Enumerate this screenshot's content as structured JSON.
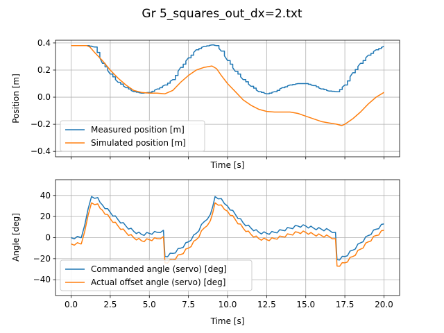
{
  "figure": {
    "title": "Gr 5_squares_out_dx=2.txt"
  },
  "chart_data": [
    {
      "type": "line",
      "title": "",
      "xlabel": "Time [s]",
      "ylabel": "Position [m]",
      "xlim": [
        -1.0,
        21.0
      ],
      "ylim": [
        -0.44,
        0.42
      ],
      "xticks": [
        0.0,
        2.5,
        5.0,
        7.5,
        10.0,
        12.5,
        15.0,
        17.5,
        20.0
      ],
      "show_xticklabels": false,
      "yticks": [
        -0.4,
        -0.2,
        0.0,
        0.2,
        0.4
      ],
      "yticklabels": [
        "−0.4",
        "−0.2",
        "0.0",
        "0.2",
        "0.4"
      ],
      "grid": true,
      "legend_position": "lower-left",
      "series": [
        {
          "name": "Measured position [m]",
          "color": "#1f77b4",
          "staircase": true,
          "x": [
            0,
            0.5,
            1.0,
            1.5,
            2.0,
            2.5,
            3.0,
            3.5,
            4.0,
            4.5,
            5.0,
            5.5,
            6.0,
            6.5,
            7.0,
            7.5,
            8.0,
            8.5,
            9.0,
            9.3,
            9.6,
            10.0,
            10.5,
            11.0,
            11.5,
            12.0,
            12.5,
            13.0,
            13.5,
            14.0,
            14.5,
            15.0,
            15.5,
            16.0,
            16.5,
            17.0,
            17.5,
            18.0,
            18.5,
            19.0,
            19.5,
            20.0
          ],
          "y": [
            0.38,
            0.38,
            0.38,
            0.37,
            0.25,
            0.17,
            0.11,
            0.07,
            0.04,
            0.03,
            0.035,
            0.06,
            0.09,
            0.13,
            0.22,
            0.29,
            0.35,
            0.375,
            0.385,
            0.38,
            0.34,
            0.27,
            0.19,
            0.13,
            0.08,
            0.04,
            0.025,
            0.04,
            0.07,
            0.09,
            0.1,
            0.1,
            0.085,
            0.06,
            0.045,
            0.04,
            0.09,
            0.18,
            0.25,
            0.31,
            0.35,
            0.375
          ]
        },
        {
          "name": "Simulated position [m]",
          "color": "#ff7f0e",
          "staircase": false,
          "x": [
            0,
            0.5,
            1.0,
            1.2,
            1.5,
            2.0,
            2.5,
            3.0,
            3.5,
            4.0,
            4.5,
            5.0,
            5.5,
            6.0,
            6.5,
            7.0,
            7.5,
            8.0,
            8.5,
            9.0,
            9.3,
            9.6,
            10.0,
            10.5,
            11.0,
            11.5,
            12.0,
            12.5,
            13.0,
            13.5,
            14.0,
            14.5,
            15.0,
            15.5,
            16.0,
            16.5,
            17.0,
            17.3,
            17.5,
            18.0,
            18.5,
            19.0,
            19.5,
            20.0
          ],
          "y": [
            0.38,
            0.38,
            0.38,
            0.37,
            0.33,
            0.27,
            0.2,
            0.14,
            0.09,
            0.05,
            0.035,
            0.03,
            0.03,
            0.025,
            0.05,
            0.11,
            0.16,
            0.2,
            0.22,
            0.23,
            0.21,
            0.16,
            0.1,
            0.04,
            -0.02,
            -0.06,
            -0.09,
            -0.105,
            -0.11,
            -0.11,
            -0.11,
            -0.12,
            -0.14,
            -0.16,
            -0.18,
            -0.19,
            -0.2,
            -0.21,
            -0.2,
            -0.16,
            -0.11,
            -0.05,
            0.0,
            0.035
          ]
        }
      ]
    },
    {
      "type": "line",
      "title": "",
      "xlabel": "Time [s]",
      "ylabel": "Angle [deg]",
      "xlim": [
        -1.0,
        21.0
      ],
      "ylim": [
        -55,
        55
      ],
      "xticks": [
        0.0,
        2.5,
        5.0,
        7.5,
        10.0,
        12.5,
        15.0,
        17.5,
        20.0
      ],
      "xticklabels": [
        "0.0",
        "2.5",
        "5.0",
        "7.5",
        "10.0",
        "12.5",
        "15.0",
        "17.5",
        "20.0"
      ],
      "yticks": [
        -40,
        -20,
        0,
        20,
        40
      ],
      "yticklabels": [
        "−40",
        "−20",
        "0",
        "20",
        "40"
      ],
      "grid": true,
      "legend_position": "lower-left",
      "series": [
        {
          "name": "Commanded angle (servo) [deg]",
          "color": "#1f77b4",
          "sawtooth": true,
          "x": [
            0,
            0.6,
            0.65,
            1.3,
            1.7,
            2.0,
            2.5,
            3.0,
            3.5,
            4.0,
            4.5,
            5.0,
            5.5,
            5.9,
            6.0,
            6.5,
            7.0,
            7.5,
            8.0,
            8.5,
            8.9,
            9.2,
            9.6,
            10.0,
            10.5,
            11.0,
            11.5,
            12.0,
            12.5,
            13.0,
            13.5,
            14.0,
            14.5,
            15.0,
            15.5,
            16.0,
            16.5,
            16.9,
            17.0,
            17.5,
            18.0,
            18.5,
            19.0,
            19.5,
            20.0
          ],
          "y": [
            0,
            0,
            0,
            39,
            38,
            31,
            24,
            17,
            11,
            6,
            3,
            4,
            5,
            7,
            -18,
            -15,
            -10,
            -4,
            4,
            15,
            22,
            39,
            37,
            30,
            22,
            14,
            9,
            5,
            4,
            5,
            7,
            9,
            11,
            11,
            9,
            8,
            7,
            5,
            -21,
            -18,
            -12,
            -5,
            2,
            8,
            13
          ]
        },
        {
          "name": "Actual offset angle (servo) [deg]",
          "color": "#ff7f0e",
          "sawtooth": true,
          "x": [
            0,
            0.6,
            0.65,
            1.3,
            1.7,
            2.0,
            2.5,
            3.0,
            3.5,
            4.0,
            4.5,
            5.0,
            5.5,
            5.9,
            6.0,
            6.5,
            7.0,
            7.5,
            8.0,
            8.5,
            8.9,
            9.2,
            9.6,
            10.0,
            10.5,
            11.0,
            11.5,
            12.0,
            12.5,
            13.0,
            13.5,
            14.0,
            14.5,
            15.0,
            15.5,
            16.0,
            16.5,
            16.9,
            17.0,
            17.5,
            18.0,
            18.5,
            19.0,
            19.5,
            20.0
          ],
          "y": [
            -6,
            -6,
            -6,
            33,
            32,
            26,
            18,
            11,
            5,
            0,
            -3,
            -2,
            -1,
            1,
            -24,
            -21,
            -16,
            -10,
            -2,
            9,
            16,
            33,
            31,
            25,
            17,
            9,
            3,
            -1,
            -2,
            -1,
            1,
            3,
            5,
            5,
            3,
            2,
            1,
            -1,
            -27,
            -24,
            -18,
            -11,
            -4,
            2,
            7
          ]
        }
      ]
    }
  ]
}
